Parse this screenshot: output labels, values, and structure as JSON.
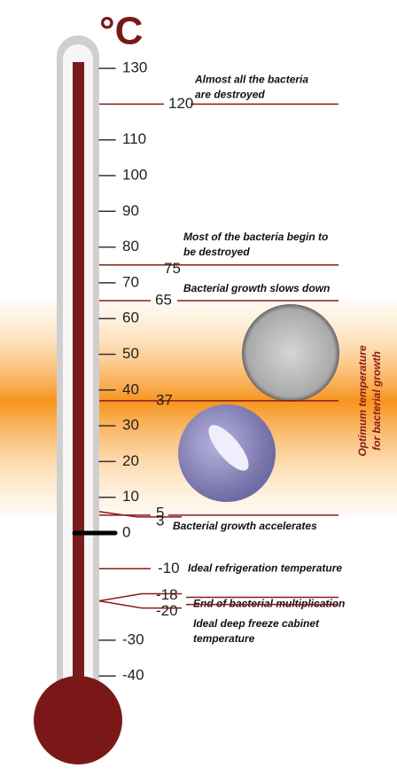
{
  "unit": "°C",
  "ticks": [
    130,
    110,
    100,
    90,
    80,
    70,
    60,
    50,
    40,
    30,
    20,
    10,
    0,
    -30,
    -40
  ],
  "annotations": [
    {
      "value": 120,
      "text": [
        "Almost all the bacteria",
        "are destroyed"
      ]
    },
    {
      "value": 75,
      "text": [
        "Most of the bacteria begin to",
        "be destroyed"
      ]
    },
    {
      "value": 65,
      "text": [
        "Bacterial growth slows down"
      ]
    },
    {
      "value": 37
    },
    {
      "value": 5
    },
    {
      "value": 3,
      "text": [
        "Bacterial growth accelerates"
      ]
    },
    {
      "value": -10,
      "text": [
        "Ideal refrigeration temperature"
      ]
    },
    {
      "value": -18,
      "text": [
        "End of bacterial multiplication"
      ]
    },
    {
      "value": -20,
      "text": [
        "Ideal deep freeze cabinet",
        "temperature"
      ]
    }
  ],
  "side_label": [
    "Optimum temperature",
    "for bacterial growth"
  ]
}
